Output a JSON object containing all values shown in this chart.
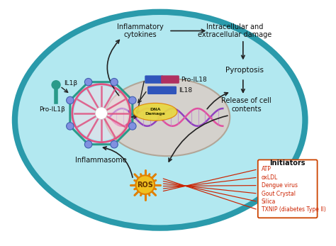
{
  "bg_color": "#b2e8f0",
  "nucleus_color": "#d8cfc8",
  "labels": {
    "IL1b": "IL1β",
    "Pro_IL1b": "Pro-IL1β",
    "IL18": "IL18",
    "Pro_IL18": "Pro-IL18",
    "Inflammasome": "Inflammasome",
    "Inflammatory_cytokines": "Inflammatory\ncytokines",
    "Intracellular": "Intracellular and\nextracellular damage",
    "Pyroptosis": "Pyroptosis",
    "Release": "Release of cell\ncontents",
    "ROS": "ROS",
    "Initiators": "Initiators",
    "DNA_damage": "DNA\nDamage",
    "ATP": "ATP",
    "oxLDL": "oxLDL",
    "Dengue": "Dengue virus",
    "Gout": "Gout Crystal",
    "Silica": "Silica",
    "TXNIP": "TXNIP (diabetes Type II)"
  },
  "colors": {
    "cell_border": "#2a9aab",
    "teal": "#2a9a8a",
    "pink": "#e05080",
    "arrow": "#222222",
    "red_arrow": "#cc2200",
    "ROS_yellow": "#f0c020",
    "ROS_orange": "#e08000",
    "DNA_yellow": "#e8d840",
    "DNA_purple": "#9040c0",
    "DNA_pink": "#e050a0",
    "nucleus_border": "#b0a090",
    "initiators_border": "#cc4400",
    "initiators_text": "#cc2200",
    "black": "#111111",
    "blue_pill": "#3055bb",
    "pink_pill": "#b03060",
    "sphere": "#8090e0",
    "sphere_edge": "#4060b0"
  }
}
